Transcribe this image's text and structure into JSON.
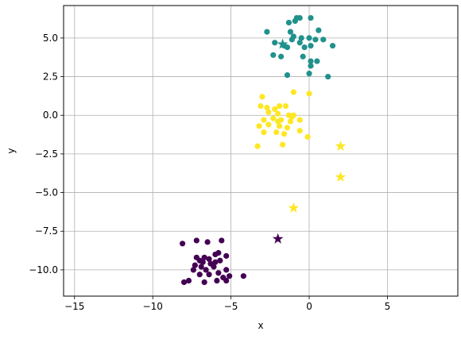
{
  "chart_data": {
    "type": "scatter",
    "title": "",
    "xlabel": "x",
    "ylabel": "y",
    "xlim": [
      -15.7,
      9.5
    ],
    "ylim": [
      -11.7,
      7.1
    ],
    "grid": true,
    "x_ticks": [
      -15,
      -10,
      -5,
      0,
      5
    ],
    "y_ticks": [
      -10.0,
      -7.5,
      -5.0,
      -2.5,
      0.0,
      2.5,
      5.0
    ],
    "x_tick_labels": [
      "−15",
      "−10",
      "−5",
      "0",
      "5"
    ],
    "y_tick_labels": [
      "−10.0",
      "−7.5",
      "−5.0",
      "−2.5",
      "0.0",
      "2.5",
      "5.0"
    ],
    "series": [
      {
        "color": "#440154",
        "marker": "circle",
        "points": [
          [
            -7.2,
            -8.1
          ],
          [
            -6.5,
            -8.2
          ],
          [
            -5.6,
            -8.1
          ],
          [
            -8.1,
            -8.3
          ],
          [
            -6.0,
            -9.0
          ],
          [
            -5.8,
            -8.9
          ],
          [
            -5.3,
            -9.1
          ],
          [
            -6.7,
            -9.2
          ],
          [
            -7.0,
            -9.4
          ],
          [
            -6.4,
            -9.3
          ],
          [
            -6.0,
            -9.5
          ],
          [
            -5.7,
            -9.4
          ],
          [
            -7.3,
            -9.7
          ],
          [
            -6.9,
            -9.8
          ],
          [
            -6.1,
            -9.8
          ],
          [
            -7.4,
            -10.0
          ],
          [
            -6.6,
            -10.0
          ],
          [
            -5.3,
            -10.0
          ],
          [
            -7.0,
            -10.3
          ],
          [
            -6.4,
            -10.3
          ],
          [
            -5.8,
            -10.2
          ],
          [
            -5.1,
            -10.4
          ],
          [
            -7.7,
            -10.7
          ],
          [
            -6.7,
            -10.8
          ],
          [
            -5.9,
            -10.7
          ],
          [
            -5.3,
            -10.7
          ],
          [
            -8.0,
            -10.8
          ],
          [
            -4.2,
            -10.4
          ],
          [
            -6.3,
            -9.6
          ],
          [
            -6.8,
            -9.5
          ],
          [
            -5.5,
            -10.5
          ],
          [
            -7.2,
            -9.2
          ]
        ]
      },
      {
        "color": "#21918c",
        "marker": "circle",
        "points": [
          [
            -0.8,
            6.3
          ],
          [
            -0.6,
            6.3
          ],
          [
            0.1,
            6.3
          ],
          [
            -0.9,
            6.1
          ],
          [
            -1.3,
            6.0
          ],
          [
            -1.2,
            5.4
          ],
          [
            -1.0,
            5.1
          ],
          [
            -2.7,
            5.4
          ],
          [
            -0.5,
            5.0
          ],
          [
            0.0,
            5.0
          ],
          [
            0.4,
            4.9
          ],
          [
            0.9,
            4.9
          ],
          [
            0.6,
            5.5
          ],
          [
            -2.2,
            4.7
          ],
          [
            -1.6,
            4.5
          ],
          [
            -1.4,
            4.4
          ],
          [
            -0.6,
            4.7
          ],
          [
            -0.3,
            4.4
          ],
          [
            0.1,
            4.5
          ],
          [
            1.5,
            4.5
          ],
          [
            -2.3,
            3.9
          ],
          [
            -1.8,
            3.8
          ],
          [
            -0.4,
            3.8
          ],
          [
            0.1,
            3.5
          ],
          [
            0.5,
            3.5
          ],
          [
            -1.4,
            2.6
          ],
          [
            0.0,
            2.7
          ],
          [
            1.2,
            2.5
          ],
          [
            0.1,
            3.2
          ],
          [
            -1.1,
            4.9
          ]
        ]
      },
      {
        "color": "#fde725",
        "marker": "circle",
        "points": [
          [
            -3.0,
            1.2
          ],
          [
            -1.0,
            1.5
          ],
          [
            0.0,
            1.4
          ],
          [
            -3.1,
            0.6
          ],
          [
            -2.7,
            0.5
          ],
          [
            -2.2,
            0.4
          ],
          [
            -1.9,
            0.6
          ],
          [
            -1.5,
            0.6
          ],
          [
            -2.0,
            0.1
          ],
          [
            -1.3,
            0.0
          ],
          [
            -1.0,
            0.0
          ],
          [
            -2.9,
            -0.3
          ],
          [
            -2.3,
            -0.2
          ],
          [
            -1.8,
            -0.3
          ],
          [
            -1.2,
            -0.4
          ],
          [
            -0.6,
            -0.3
          ],
          [
            -3.2,
            -0.7
          ],
          [
            -2.6,
            -0.6
          ],
          [
            -1.9,
            -0.7
          ],
          [
            -1.4,
            -0.8
          ],
          [
            -2.9,
            -1.1
          ],
          [
            -2.1,
            -1.1
          ],
          [
            -1.6,
            -1.2
          ],
          [
            -0.6,
            -1.0
          ],
          [
            -0.1,
            -1.4
          ],
          [
            -1.7,
            -1.9
          ],
          [
            -3.3,
            -2.0
          ],
          [
            -1.1,
            -0.1
          ],
          [
            -2.0,
            -0.4
          ],
          [
            -2.6,
            0.2
          ]
        ]
      }
    ],
    "stars": [
      {
        "x": -2.0,
        "y": -8.0,
        "color": "#440154"
      },
      {
        "x": -1.7,
        "y": 4.6,
        "color": "#21918c"
      },
      {
        "x": 2.0,
        "y": -2.0,
        "color": "#fde725"
      },
      {
        "x": 2.0,
        "y": -4.0,
        "color": "#fde725"
      },
      {
        "x": -1.0,
        "y": -6.0,
        "color": "#fde725"
      }
    ]
  }
}
